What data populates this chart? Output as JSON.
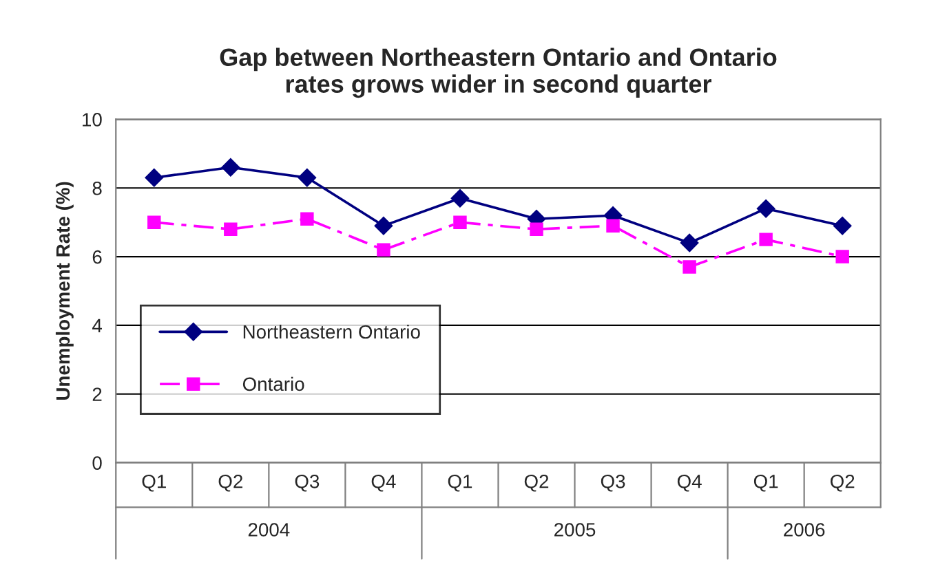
{
  "chart_data": {
    "type": "line",
    "title": "Gap between Northeastern Ontario and Ontario\nrates grows wider in second quarter",
    "ylabel": "Unemployment Rate (%)",
    "categories": [
      "Q1",
      "Q2",
      "Q3",
      "Q4",
      "Q1",
      "Q2",
      "Q3",
      "Q4",
      "Q1",
      "Q2"
    ],
    "annotations": [
      "2004",
      "2005",
      "2006"
    ],
    "series": [
      {
        "name": "Northeastern Ontario",
        "color": "#000080",
        "marker": "diamond",
        "line_style": "solid",
        "values": [
          8.3,
          8.6,
          8.3,
          6.9,
          7.7,
          7.1,
          7.2,
          6.4,
          7.4,
          6.9
        ]
      },
      {
        "name": "Ontario",
        "color": "#ff00ff",
        "marker": "square",
        "line_style": "dashed",
        "values": [
          7.0,
          6.8,
          7.1,
          6.2,
          7.0,
          6.8,
          6.9,
          5.7,
          6.5,
          6.0
        ]
      }
    ],
    "ylim": [
      0,
      10
    ],
    "yticks": [
      0,
      2,
      4,
      6,
      8,
      10
    ],
    "grid": "y",
    "legend": "center left"
  }
}
